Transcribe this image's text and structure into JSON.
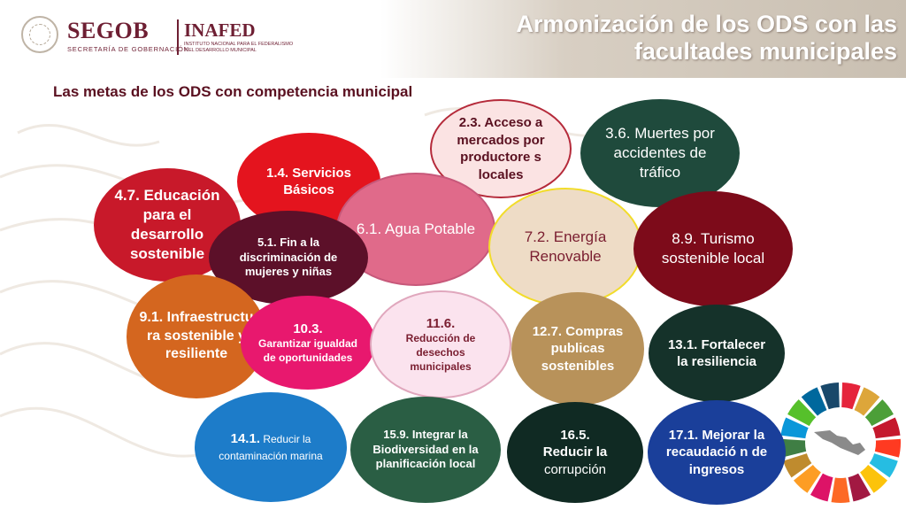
{
  "header": {
    "brand": "SEGOB",
    "brand_sub": "SECRETARÍA DE GOBERNACIÓN",
    "brand2": "INAFED",
    "brand2_sub_line1": "INSTITUTO NACIONAL PARA EL FEDERALISMO",
    "brand2_sub_line2": "Y EL DESARROLLO MUNICIPAL",
    "title_line1": "Armonización de los ODS con las",
    "title_line2": "facultades municipales"
  },
  "subtitle": "Las metas de los ODS con competencia municipal",
  "circles": [
    {
      "id": "c23",
      "parts": [
        {
          "t": "2.3. Acceso a mercados por productore s locales",
          "b": true
        }
      ],
      "bg": "#fbe3e3",
      "fg": "#5a1020",
      "border": "#b52a3a"
    },
    {
      "id": "c36",
      "parts": [
        {
          "t": "3.6. Muertes por accidentes de tráfico",
          "b": false
        }
      ],
      "bg": "#1f4a3c",
      "fg": "#ffffff",
      "border": "#1f4a3c"
    },
    {
      "id": "c14",
      "parts": [
        {
          "t": "1.4. Servicios Básicos",
          "b": true
        }
      ],
      "bg": "#e4141e",
      "fg": "#ffffff",
      "border": "#e4141e"
    },
    {
      "id": "c47",
      "parts": [
        {
          "t": "4.7. Educación para el desarrollo sostenible",
          "b": true
        }
      ],
      "bg": "#c8192a",
      "fg": "#ffffff",
      "border": "#c8192a"
    },
    {
      "id": "c61",
      "parts": [
        {
          "t": "6.1. Agua Potable",
          "b": false
        }
      ],
      "bg": "#e06a8a",
      "fg": "#ffffff",
      "border": "#c7587a"
    },
    {
      "id": "c72",
      "parts": [
        {
          "t": "7.2. Energía Renovable",
          "b": false
        }
      ],
      "bg": "#eedcc6",
      "fg": "#7a1e30",
      "border": "#f2dc2a"
    },
    {
      "id": "c89",
      "parts": [
        {
          "t": "8.9. Turismo sostenible local",
          "b": false
        }
      ],
      "bg": "#7d0b1a",
      "fg": "#ffffff",
      "border": "#7d0b1a"
    },
    {
      "id": "c51",
      "parts": [
        {
          "t": "5.1. Fin a la discriminación de mujeres y niñas",
          "b": true
        }
      ],
      "bg": "#5c1029",
      "fg": "#ffffff",
      "border": "#5c1029"
    },
    {
      "id": "c91",
      "parts": [
        {
          "t": "9.1. Infraestructu ra sostenible y resiliente",
          "b": true
        }
      ],
      "bg": "#d4661f",
      "fg": "#ffffff",
      "border": "#d4661f"
    },
    {
      "id": "c103",
      "parts": [
        {
          "t": "10.3.",
          "b": true
        },
        {
          "t": "Garantizar igualdad de oportunidades",
          "b": true,
          "small": true
        }
      ],
      "bg": "#e8186e",
      "fg": "#ffffff",
      "border": "#e8186e"
    },
    {
      "id": "c116",
      "parts": [
        {
          "t": "11.6.",
          "b": true
        },
        {
          "t": "Reducción de desechos municipales",
          "b": true,
          "small": true
        }
      ],
      "bg": "#fbe3ee",
      "fg": "#7a1e30",
      "border": "#e0a7bd"
    },
    {
      "id": "c127",
      "parts": [
        {
          "t": "12.7. Compras publicas sostenibles",
          "b": true
        }
      ],
      "bg": "#b8925a",
      "fg": "#ffffff",
      "border": "#b8925a"
    },
    {
      "id": "c131",
      "parts": [
        {
          "t": "13.1. Fortalecer la resiliencia",
          "b": true
        }
      ],
      "bg": "#15322a",
      "fg": "#ffffff",
      "border": "#15322a"
    },
    {
      "id": "c141",
      "parts": [
        {
          "t": "14.1.",
          "b": true,
          "inline": true
        },
        {
          "t": "Reducir la contaminación marina",
          "b": false,
          "small": true,
          "inline": true
        }
      ],
      "bg": "#1d7cc9",
      "fg": "#ffffff",
      "border": "#1d7cc9"
    },
    {
      "id": "c159",
      "parts": [
        {
          "t": "15.9. Integrar la Biodiversidad en la planificación local",
          "b": true
        }
      ],
      "bg": "#2a5e44",
      "fg": "#ffffff",
      "border": "#2a5e44"
    },
    {
      "id": "c165",
      "parts": [
        {
          "t": "16.5.",
          "b": true
        },
        {
          "t": "Reducir la",
          "b": true
        },
        {
          "t": "corrupción",
          "b": false
        }
      ],
      "bg": "#102a23",
      "fg": "#ffffff",
      "border": "#102a23"
    },
    {
      "id": "c171",
      "parts": [
        {
          "t": "17.1. Mejorar la recaudació n de ingresos",
          "b": true
        }
      ],
      "bg": "#1a3f9a",
      "fg": "#ffffff",
      "border": "#1a3f9a"
    }
  ],
  "wheel_colors": [
    "#e5243b",
    "#dda63a",
    "#4c9f38",
    "#c5192d",
    "#ff3a21",
    "#26bde2",
    "#fcc30b",
    "#a21942",
    "#fd6925",
    "#dd1367",
    "#fd9d24",
    "#bf8b2e",
    "#3f7e44",
    "#0a97d9",
    "#56c02b",
    "#00689d",
    "#19486a"
  ]
}
